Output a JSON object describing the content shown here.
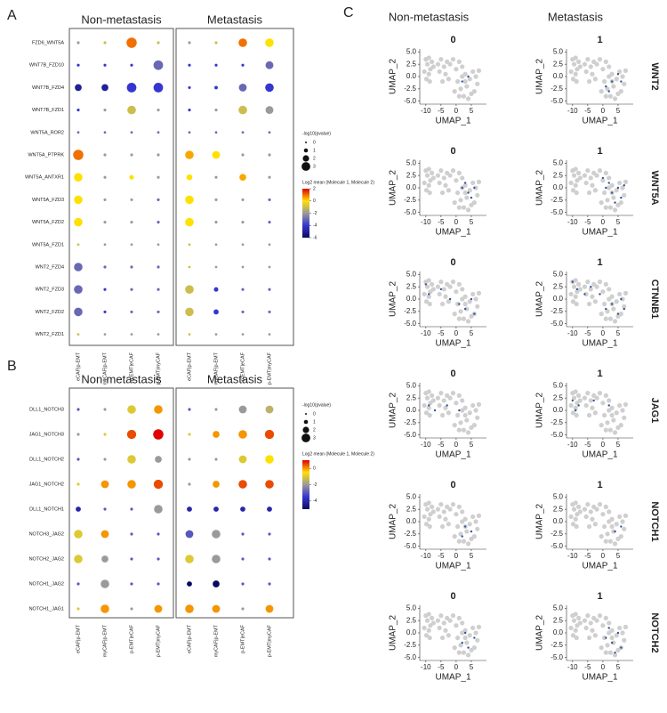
{
  "chart_data": [
    {
      "type": "dot",
      "panel": "A",
      "groups": [
        "Non-metastasis",
        "Metastasis"
      ],
      "columns": [
        "eCAF|p-EMT",
        "myCAF|p-EMT",
        "p-EMT|eCAF",
        "p-EMT|myCAF",
        "eCAF|p-EMT",
        "myCAF|p-EMT",
        "p-EMT|eCAF",
        "p-EMT|myCAF"
      ],
      "rows": [
        "FZD6_WNT5A",
        "WNT7B_FZD10",
        "WNT7B_FZD4",
        "WNT7B_FZD1",
        "WNT5A_ROR2",
        "WNT5A_PTPRK",
        "WNT5A_ANTXR1",
        "WNT5A_FZD3",
        "WNT5A_FZD2",
        "WNT5A_FZD1",
        "WNT2_FZD4",
        "WNT2_FZD3",
        "WNT2_FZD2",
        "WNT2_FZD1"
      ],
      "log2_mean": [
        [
          -2,
          -1,
          1,
          -1,
          -2,
          -1,
          1,
          0
        ],
        [
          -4,
          -4,
          -4,
          -3,
          -4,
          -4,
          -4,
          -3
        ],
        [
          -5,
          -5,
          -4,
          -4,
          -4,
          -4,
          -3,
          -4
        ],
        [
          -4,
          -2,
          -1,
          -2,
          -4,
          -2,
          -1,
          -2
        ],
        [
          -3,
          -3,
          -3,
          -3,
          -3,
          -3,
          -3,
          -3
        ],
        [
          1,
          -2,
          -2,
          -2,
          0.5,
          0,
          -2,
          -2
        ],
        [
          0,
          -2,
          0,
          -2,
          0,
          -2,
          0.5,
          -2
        ],
        [
          0,
          -2,
          -2,
          -3,
          0,
          -2,
          -2,
          -3
        ],
        [
          0,
          -2,
          -2,
          -3,
          0,
          -2,
          -2,
          -3
        ],
        [
          -1,
          -2,
          -2,
          -2,
          -1,
          -2,
          -2,
          -2
        ],
        [
          -3,
          -3,
          -3,
          -3,
          -1,
          -2,
          -2,
          -2
        ],
        [
          -3,
          -4,
          -3,
          -3,
          -1,
          -4,
          -3,
          -3
        ],
        [
          -3,
          -4,
          -3,
          -3,
          -1,
          -4,
          -3,
          -3
        ],
        [
          -1,
          -2,
          -2,
          -2,
          -1,
          -2,
          -2,
          -2
        ]
      ],
      "neg_log10_p": [
        [
          0.3,
          0.3,
          2.5,
          0.3,
          0.3,
          0.3,
          2,
          2
        ],
        [
          0.3,
          0.3,
          0.3,
          2.3,
          0.3,
          0.3,
          0.3,
          1.8
        ],
        [
          1.5,
          1.5,
          2.3,
          2.3,
          0.3,
          0.5,
          1.8,
          2
        ],
        [
          0.3,
          0.3,
          2,
          0.3,
          0.3,
          0.3,
          2,
          1.8
        ],
        [
          0.2,
          0.2,
          0.2,
          0.2,
          0.2,
          0.2,
          0.2,
          0.2
        ],
        [
          2.5,
          0.3,
          0.3,
          0.3,
          2,
          1.8,
          0.3,
          0.3
        ],
        [
          2,
          0.3,
          0.8,
          0.3,
          1.2,
          0.3,
          1.5,
          0.3
        ],
        [
          2,
          0.3,
          0.3,
          0.3,
          2,
          0.3,
          0.3,
          0.3
        ],
        [
          2,
          0.3,
          0.3,
          0.3,
          2,
          0.3,
          0.3,
          0.3
        ],
        [
          0.2,
          0.2,
          0.2,
          0.2,
          0.2,
          0.2,
          0.2,
          0.2
        ],
        [
          2,
          0.3,
          0.3,
          0.3,
          0.2,
          0.2,
          0.2,
          0.2
        ],
        [
          2,
          0.3,
          0.3,
          0.3,
          2,
          0.8,
          0.3,
          0.3
        ],
        [
          2,
          0.3,
          0.3,
          0.3,
          2,
          1,
          0.3,
          0.3
        ],
        [
          0.2,
          0.2,
          0.2,
          0.2,
          0.2,
          0.2,
          0.2,
          0.2
        ]
      ],
      "size_title": "-log10(pvalue)",
      "size_ticks": [
        0,
        1,
        2,
        3
      ],
      "color_title": "Log2 mean (Molecule 1, Molecule 2)",
      "clim": [
        -6,
        2
      ],
      "colorticks": [
        2,
        0,
        -2,
        -4,
        -6
      ],
      "colorscale": [
        "#0a0a60",
        "#3535d0",
        "#9a9a9a",
        "#ffe000",
        "#e00000"
      ]
    },
    {
      "type": "dot",
      "panel": "B",
      "groups": [
        "Non-metastasis",
        "Metastasis"
      ],
      "columns": [
        "eCAF|p-EMT",
        "myCAF|p-EMT",
        "p-EMT|eCAF",
        "p-EMT|myCAF",
        "eCAF|p-EMT",
        "myCAF|p-EMT",
        "p-EMT|eCAF",
        "p-EMT|myCAF"
      ],
      "rows": [
        "DLL1_NOTCH3",
        "JAG1_NOTCH3",
        "DLL1_NOTCH2",
        "JAG1_NOTCH2",
        "DLL1_NOTCH1",
        "NOTCH3_JAG2",
        "NOTCH2_JAG2",
        "NOTCH1_JAG2",
        "NOTCH1_JAG1"
      ],
      "log2_mean": [
        [
          -3,
          -2,
          -1,
          0,
          -3,
          -2,
          -2,
          -1.5
        ],
        [
          -2,
          -1,
          0.5,
          1,
          -1,
          0,
          0,
          0.5
        ],
        [
          -3,
          -2,
          -1,
          -2,
          -2,
          -2,
          -1,
          -0.5
        ],
        [
          -1,
          0,
          0,
          0.5,
          -2,
          0,
          0.5,
          0.5
        ],
        [
          -4,
          -3,
          -3,
          -2,
          -4,
          -4,
          -4,
          -4
        ],
        [
          -1,
          0,
          -3,
          -3,
          -3,
          -2,
          -3,
          -3
        ],
        [
          -1,
          -2,
          -3,
          -3,
          -1,
          -2,
          -3,
          -3
        ],
        [
          -3,
          -2,
          -3,
          -3,
          -5,
          -5,
          -3,
          -3
        ],
        [
          -1,
          0,
          -2,
          0,
          0,
          0,
          -2,
          0
        ]
      ],
      "neg_log10_p": [
        [
          0.3,
          0.3,
          2,
          2,
          0.3,
          0.3,
          1.8,
          1.8
        ],
        [
          0.3,
          0.3,
          2.2,
          2.5,
          0.3,
          1.5,
          2,
          2.2
        ],
        [
          0.3,
          0.3,
          2,
          1.5,
          0.3,
          0.3,
          1.8,
          2
        ],
        [
          0.3,
          1.8,
          2,
          2.2,
          0.3,
          1.5,
          2,
          2
        ],
        [
          1,
          0.3,
          0.3,
          2,
          1,
          1,
          1,
          1
        ],
        [
          2,
          1.8,
          0.3,
          0.3,
          1.8,
          2,
          0.3,
          0.3
        ],
        [
          2,
          1.5,
          0.3,
          0.3,
          2,
          2,
          0.3,
          0.3
        ],
        [
          0.3,
          2,
          0.3,
          0.3,
          1,
          1.5,
          0.3,
          0.3
        ],
        [
          0.3,
          2,
          0.3,
          1.8,
          2,
          1.8,
          0.3,
          1.8
        ]
      ],
      "size_title": "-log10(pvalue)",
      "size_ticks": [
        0,
        1,
        2,
        3
      ],
      "color_title": "Log2 mean (Molecule 1, Molecule 2)",
      "clim": [
        -5,
        1
      ],
      "colorticks": [
        0,
        -2,
        -4
      ],
      "colorscale": [
        "#0a0a60",
        "#3535d0",
        "#9a9a9a",
        "#ffe000",
        "#e00000"
      ]
    },
    {
      "type": "umap-grid",
      "panel": "C",
      "column_titles": [
        "Non-metastasis",
        "Metastasis"
      ],
      "xlabel": "UMAP_1",
      "ylabel": "UMAP_2",
      "xlim": [
        -12,
        10
      ],
      "ylim": [
        -5.6,
        5.6
      ],
      "xticks": [
        -10,
        -5,
        0,
        5
      ],
      "yticks": [
        {
          "value": 5,
          "label": "5.0"
        },
        {
          "value": 2.5,
          "label": "2.5"
        },
        {
          "value": 0,
          "label": "0.0"
        },
        {
          "value": -2.5,
          "label": "-2.5"
        },
        {
          "value": -5,
          "label": "-5.0"
        }
      ],
      "background_color": "#cfcfcf",
      "highlight_color": "#2f5597",
      "background": {
        "x": [
          -10,
          -9.5,
          -9,
          -8.5,
          -10.5,
          -9,
          -8,
          -7.5,
          -9.8,
          -8.7,
          -6,
          -5,
          -4,
          -3,
          -5.5,
          -3.5,
          -2,
          -1,
          -2.5,
          -4.5,
          0,
          1,
          2,
          3,
          0.5,
          1.5,
          2.5,
          3.5,
          4.5,
          5.5,
          6.5,
          7,
          6,
          4,
          5,
          7.5,
          3,
          1,
          -0.5,
          2
        ],
        "y": [
          3.5,
          2.5,
          3.8,
          1.5,
          1,
          0.5,
          3,
          2,
          -0.5,
          -1,
          2.5,
          3.5,
          2,
          3,
          1,
          0.5,
          2.5,
          3.5,
          -0.5,
          -1,
          1.5,
          3,
          2,
          0.5,
          -1,
          -2.5,
          -4,
          -2,
          -0.5,
          1,
          0,
          -1.5,
          -3,
          -4.5,
          -3.5,
          1.2,
          -1,
          -4,
          -3,
          0
        ]
      },
      "rows": [
        {
          "gene": "WNT2",
          "panels": [
            {
              "title": "0",
              "x": [
                2,
                4
              ],
              "y": [
                -1,
                0
              ]
            },
            {
              "title": "1",
              "x": [
                1,
                3,
                5,
                2,
                6
              ],
              "y": [
                -2,
                -1,
                0.5,
                -3,
                -1
              ]
            }
          ]
        },
        {
          "gene": "WNT5A",
          "panels": [
            {
              "title": "0",
              "x": [
                2,
                4,
                6,
                5,
                3
              ],
              "y": [
                0,
                -1,
                0,
                -2,
                1
              ]
            },
            {
              "title": "1",
              "x": [
                1,
                3,
                5,
                6,
                4,
                2,
                7,
                0
              ],
              "y": [
                0,
                -1,
                0,
                -2,
                -3,
                1,
                0.5,
                2
              ]
            }
          ]
        },
        {
          "gene": "CTNNB1",
          "panels": [
            {
              "title": "0",
              "x": [
                -10,
                -9,
                -5,
                -2,
                1,
                3,
                5,
                6
              ],
              "y": [
                3,
                1,
                2,
                0,
                -1,
                -2,
                0,
                -3
              ]
            },
            {
              "title": "1",
              "x": [
                -10,
                -8.5,
                -6,
                -4,
                -1,
                1,
                3,
                5,
                6,
                7
              ],
              "y": [
                3.5,
                2,
                1,
                2.5,
                1,
                -2,
                -1,
                -3,
                0,
                -2
              ]
            }
          ]
        },
        {
          "gene": "JAG1",
          "panels": [
            {
              "title": "0",
              "x": [
                -9,
                -7,
                -3,
                1
              ],
              "y": [
                1,
                0,
                1,
                0
              ]
            },
            {
              "title": "1",
              "x": [
                -10,
                -8,
                -9,
                -3,
                2
              ],
              "y": [
                2,
                1,
                0,
                2,
                1
              ]
            }
          ]
        },
        {
          "gene": "NOTCH1",
          "panels": [
            {
              "title": "0",
              "x": [
                3,
                5,
                2
              ],
              "y": [
                -1,
                -2,
                -3
              ]
            },
            {
              "title": "1",
              "x": [
                4,
                6
              ],
              "y": [
                -2,
                -1
              ]
            }
          ]
        },
        {
          "gene": "NOTCH2",
          "panels": [
            {
              "title": "0",
              "x": [
                2,
                4,
                6,
                3
              ],
              "y": [
                -2,
                -3,
                -1,
                0
              ]
            },
            {
              "title": "1",
              "x": [
                1,
                3,
                5,
                6,
                4,
                2
              ],
              "y": [
                -1,
                -2,
                0,
                -3,
                -4,
                1
              ]
            }
          ]
        }
      ]
    }
  ]
}
